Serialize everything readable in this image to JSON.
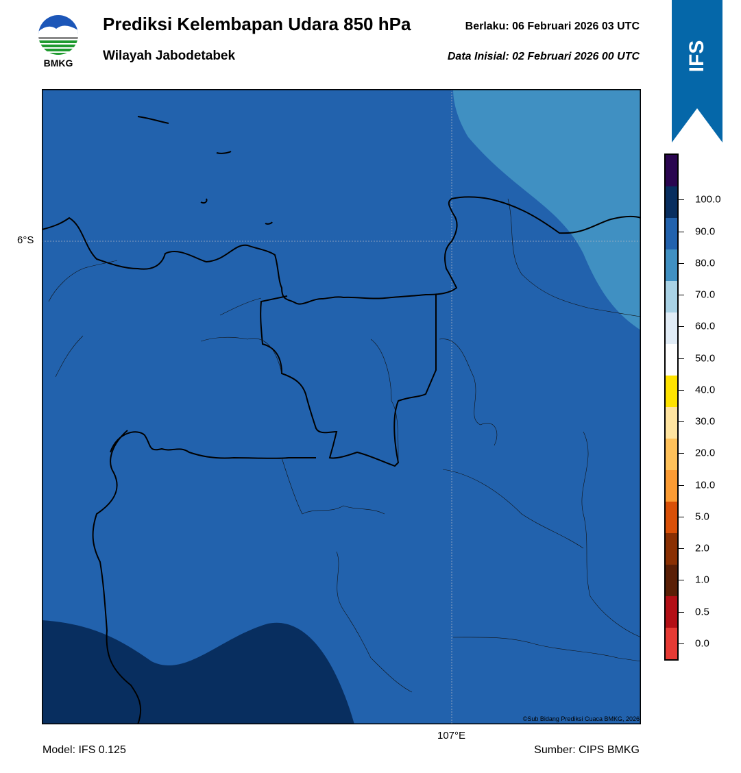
{
  "header": {
    "title": "Prediksi Kelembapan Udara 850 hPa",
    "region": "Wilayah Jabodetabek",
    "valid": "Berlaku:  06 Februari 2026 03 UTC",
    "init": "Data Inisial:  02 Februari 2026 00 UTC"
  },
  "logo": {
    "text": "BMKG",
    "icon": "bmkg-logo-icon"
  },
  "badge": {
    "text": "IFS",
    "color": "#0567a9"
  },
  "map": {
    "lat_label": "6°S",
    "lon_label": "107°E",
    "copyright": "©Sub Bidang Prediksi Cuaca BMKG, 2026",
    "fill_colors": {
      "rh_80_90": "#2262ad",
      "rh_70_80": "#4090c2",
      "rh_90_100": "#082e5f"
    }
  },
  "colorbar": {
    "labels": [
      "100.0",
      "90.0",
      "80.0",
      "70.0",
      "60.0",
      "50.0",
      "40.0",
      "30.0",
      "20.0",
      "10.0",
      "5.0",
      "2.0",
      "1.0",
      "0.5",
      "0.0"
    ],
    "colors": [
      "#2a0650",
      "#082e5f",
      "#2262ad",
      "#4090c2",
      "#a9d2e5",
      "#e1ecf6",
      "#ffffff",
      "#ffe300",
      "#ffe4a0",
      "#ffc15a",
      "#fb9b33",
      "#d95008",
      "#8a3003",
      "#5a1f06",
      "#b30f16",
      "#e63a34"
    ]
  },
  "footer": {
    "model": "Model: IFS 0.125",
    "source": "Sumber: CIPS BMKG"
  }
}
